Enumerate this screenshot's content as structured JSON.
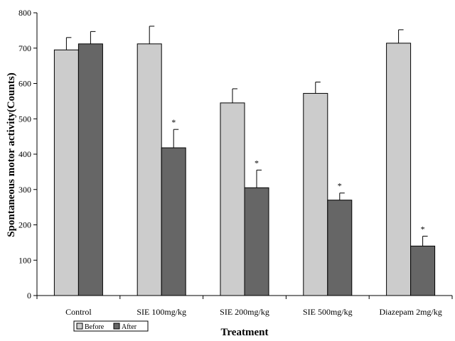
{
  "chart_data": {
    "type": "bar",
    "xlabel": "Treatment",
    "ylabel": "Spontaneous motor activity(Counts)",
    "ylim": [
      0,
      800
    ],
    "yticks": [
      0,
      100,
      200,
      300,
      400,
      500,
      600,
      700,
      800
    ],
    "categories": [
      "Control",
      "SIE 100mg/kg",
      "SIE 200mg/kg",
      "SIE 500mg/kg",
      "Diazepam 2mg/kg"
    ],
    "series": [
      {
        "name": "Before",
        "color": "#cccccc",
        "values": [
          695,
          712,
          545,
          572,
          714
        ],
        "errors": [
          35,
          50,
          40,
          32,
          38
        ]
      },
      {
        "name": "After",
        "color": "#666666",
        "values": [
          712,
          418,
          305,
          270,
          140
        ],
        "errors": [
          35,
          52,
          50,
          20,
          28
        ]
      }
    ],
    "annotations": [
      {
        "category": 1,
        "series": "After",
        "text": "*"
      },
      {
        "category": 2,
        "series": "After",
        "text": "*"
      },
      {
        "category": 3,
        "series": "After",
        "text": "*"
      },
      {
        "category": 4,
        "series": "After",
        "text": "*"
      }
    ],
    "legend": {
      "position": "bottom-left"
    },
    "grid": false
  }
}
